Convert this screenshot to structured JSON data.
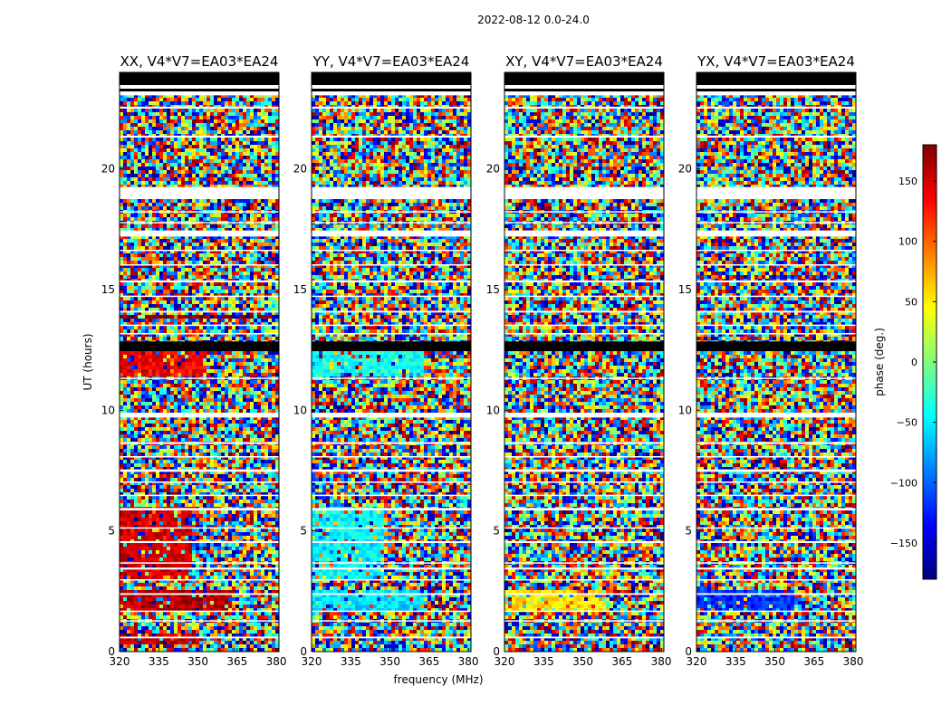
{
  "figure": {
    "suptitle": "2022-08-12 0.0-24.0"
  },
  "chart_data": {
    "type": "heatmap",
    "suptitle": "2022-08-12 0.0-24.0",
    "xlabel": "frequency (MHz)",
    "ylabel": "UT (hours)",
    "xlim": [
      320,
      381
    ],
    "ylim": [
      0,
      24
    ],
    "x_ticks": [
      320,
      335,
      350,
      365,
      380
    ],
    "y_ticks": [
      0,
      5,
      10,
      15,
      20
    ],
    "panels": [
      {
        "title": "XX, V4*V7=EA03*EA24",
        "dominant_phase_deg": [
          {
            "ut": [
              0.3,
              0.7
            ],
            "freq": [
              320,
              350
            ],
            "phase": 155
          },
          {
            "ut": [
              1.6,
              2.6
            ],
            "freq": [
              320,
              363
            ],
            "phase": 160
          },
          {
            "ut": [
              3.0,
              6.0
            ],
            "freq": [
              320,
              348
            ],
            "phase": 150
          },
          {
            "ut": [
              11.4,
              12.4
            ],
            "freq": [
              320,
              353
            ],
            "phase": 140
          },
          {
            "ut": [
              13.8,
              14.0
            ],
            "freq": [
              320,
              381
            ],
            "phase": 175
          }
        ]
      },
      {
        "title": "YY, V4*V7=EA03*EA24",
        "dominant_phase_deg": [
          {
            "ut": [
              1.6,
              2.6
            ],
            "freq": [
              320,
              363
            ],
            "phase": -55
          },
          {
            "ut": [
              3.0,
              6.0
            ],
            "freq": [
              320,
              348
            ],
            "phase": -45
          },
          {
            "ut": [
              11.4,
              12.4
            ],
            "freq": [
              320,
              363
            ],
            "phase": -40
          }
        ]
      },
      {
        "title": "XY, V4*V7=EA03*EA24",
        "dominant_phase_deg": [
          {
            "ut": [
              1.6,
              2.6
            ],
            "freq": [
              320,
              358
            ],
            "phase": 55
          }
        ]
      },
      {
        "title": "YX, V4*V7=EA03*EA24",
        "dominant_phase_deg": [
          {
            "ut": [
              1.6,
              2.6
            ],
            "freq": [
              320,
              358
            ],
            "phase": -120
          }
        ]
      }
    ],
    "colorbar": {
      "label": "phase (deg.)",
      "range": [
        -180,
        180
      ],
      "ticks": [
        -150,
        -100,
        -50,
        0,
        50,
        100,
        150
      ],
      "tick_labels": [
        "−150",
        "−100",
        "−50",
        "0",
        "50",
        "100",
        "150"
      ],
      "colormap": "jet",
      "colors": [
        "#00007f",
        "#0000ff",
        "#007fff",
        "#00ffff",
        "#7fff7f",
        "#ffff00",
        "#ff7f00",
        "#ff0000",
        "#7f0000"
      ]
    },
    "flagged_ut_gaps": [
      [
        0.55,
        0.62
      ],
      [
        1.25,
        1.3
      ],
      [
        1.65,
        1.7
      ],
      [
        2.35,
        2.42
      ],
      [
        2.95,
        3.0
      ],
      [
        3.4,
        3.48
      ],
      [
        3.65,
        3.7
      ],
      [
        4.5,
        4.58
      ],
      [
        5.1,
        5.15
      ],
      [
        5.85,
        5.95
      ],
      [
        6.45,
        6.5
      ],
      [
        7.0,
        7.05
      ],
      [
        7.45,
        7.55
      ],
      [
        8.05,
        8.1
      ],
      [
        8.6,
        8.68
      ],
      [
        9.7,
        9.9
      ],
      [
        11.3,
        11.35
      ],
      [
        12.5,
        12.55
      ],
      [
        13.15,
        13.2
      ],
      [
        13.5,
        13.55
      ],
      [
        14.05,
        14.12
      ],
      [
        14.7,
        14.75
      ],
      [
        15.3,
        15.38
      ],
      [
        16.0,
        16.05
      ],
      [
        16.6,
        16.65
      ],
      [
        17.2,
        17.45
      ],
      [
        17.75,
        17.8
      ],
      [
        18.2,
        18.25
      ],
      [
        18.75,
        19.25
      ],
      [
        21.3,
        21.38
      ],
      [
        22.5,
        22.58
      ],
      [
        23.05,
        23.35
      ],
      [
        23.7,
        23.75
      ]
    ],
    "flagged_ut_black": [
      [
        12.45,
        12.85
      ],
      [
        24.0,
        24.0
      ]
    ]
  }
}
